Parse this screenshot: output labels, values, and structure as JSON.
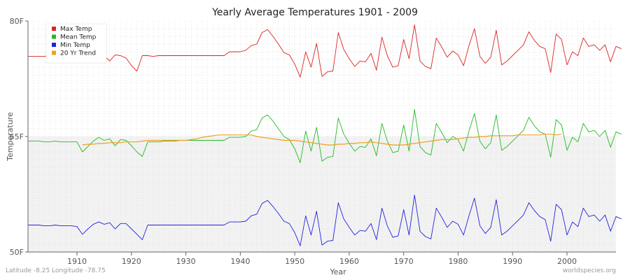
{
  "chart_data": {
    "type": "line",
    "title": "Yearly Average Temperatures 1901 - 2009",
    "xlabel": "Year",
    "ylabel": "Temperature",
    "xlim": [
      1901,
      2009
    ],
    "ylim": [
      50,
      80
    ],
    "yticks": [
      {
        "value": 50,
        "label": "50F"
      },
      {
        "value": 65,
        "label": "65F"
      },
      {
        "value": 80,
        "label": "80F"
      }
    ],
    "xticks": [
      1910,
      1920,
      1930,
      1940,
      1950,
      1960,
      1970,
      1980,
      1990,
      2000
    ],
    "grid": true,
    "legend_position": "top-left",
    "series": [
      {
        "name": "Max Temp",
        "color": "#dd2222",
        "x_start": 1901,
        "values": [
          75.4,
          75.4,
          75.4,
          75.4,
          75.5,
          75.4,
          75.4,
          75.4,
          75.3,
          74.9,
          75.5,
          75.8,
          75.6,
          75.4,
          75.5,
          74.8,
          75.6,
          75.5,
          75.2,
          74.2,
          73.5,
          75.5,
          75.5,
          75.4,
          75.5,
          75.5,
          75.5,
          75.5,
          75.5,
          75.5,
          75.5,
          75.5,
          75.5,
          75.5,
          75.5,
          75.5,
          75.5,
          76.0,
          76.0,
          76.0,
          76.2,
          76.8,
          77.0,
          78.5,
          78.9,
          78.0,
          77.0,
          75.9,
          75.6,
          74.4,
          72.7,
          76.0,
          74.0,
          77.1,
          72.8,
          73.4,
          73.5,
          78.5,
          76.3,
          75.1,
          74.1,
          74.8,
          74.7,
          75.8,
          73.6,
          77.9,
          75.5,
          74.0,
          74.2,
          77.6,
          75.1,
          79.5,
          74.8,
          74.1,
          73.8,
          77.8,
          76.6,
          75.3,
          76.1,
          75.6,
          74.2,
          76.8,
          79.0,
          75.4,
          74.5,
          75.3,
          78.8,
          74.3,
          74.8,
          75.5,
          76.2,
          76.9,
          78.6,
          77.5,
          76.7,
          76.4,
          73.3,
          78.3,
          77.6,
          74.3,
          76.0,
          75.5,
          77.8,
          76.7,
          76.9,
          76.2,
          76.9,
          74.7,
          76.7,
          76.4
        ]
      },
      {
        "name": "Mean Temp",
        "color": "#22bb22",
        "x_start": 1901,
        "values": [
          64.4,
          64.4,
          64.4,
          64.3,
          64.3,
          64.4,
          64.3,
          64.3,
          64.3,
          64.3,
          63.0,
          63.7,
          64.4,
          64.9,
          64.5,
          64.7,
          63.8,
          64.6,
          64.5,
          63.8,
          63.0,
          62.4,
          64.3,
          64.3,
          64.3,
          64.4,
          64.4,
          64.4,
          64.5,
          64.5,
          64.5,
          64.5,
          64.5,
          64.5,
          64.5,
          64.5,
          64.5,
          64.9,
          64.9,
          64.9,
          65.0,
          65.7,
          65.9,
          67.4,
          67.8,
          67.0,
          66.0,
          65.0,
          64.6,
          63.4,
          61.6,
          65.7,
          63.1,
          66.2,
          61.8,
          62.3,
          62.4,
          67.4,
          65.3,
          64.1,
          63.1,
          63.7,
          63.6,
          64.7,
          62.5,
          66.7,
          64.4,
          62.9,
          63.1,
          66.5,
          63.1,
          68.5,
          63.7,
          62.9,
          62.6,
          66.7,
          65.5,
          64.2,
          65.0,
          64.6,
          63.1,
          65.7,
          68.0,
          64.4,
          63.4,
          64.2,
          67.8,
          63.2,
          63.7,
          64.4,
          65.1,
          65.8,
          67.5,
          66.4,
          65.6,
          65.3,
          62.3,
          67.2,
          66.5,
          63.2,
          64.9,
          64.3,
          66.7,
          65.6,
          65.8,
          65.0,
          65.8,
          63.6,
          65.6,
          65.3
        ]
      },
      {
        "name": "Min Temp",
        "color": "#2222dd",
        "x_start": 1901,
        "values": [
          53.5,
          53.5,
          53.5,
          53.4,
          53.4,
          53.5,
          53.4,
          53.4,
          53.4,
          53.3,
          52.3,
          53.0,
          53.6,
          53.9,
          53.6,
          53.8,
          53.0,
          53.7,
          53.7,
          53.0,
          52.3,
          51.6,
          53.5,
          53.5,
          53.5,
          53.5,
          53.5,
          53.5,
          53.5,
          53.5,
          53.5,
          53.5,
          53.5,
          53.5,
          53.5,
          53.5,
          53.5,
          53.9,
          53.9,
          53.9,
          54.0,
          54.7,
          54.9,
          56.3,
          56.7,
          55.9,
          55.0,
          54.0,
          53.7,
          52.5,
          50.8,
          54.7,
          52.2,
          55.3,
          50.9,
          51.4,
          51.5,
          56.4,
          54.3,
          53.2,
          52.2,
          52.8,
          52.7,
          53.7,
          51.6,
          55.7,
          53.4,
          51.9,
          52.1,
          55.5,
          52.2,
          57.4,
          52.7,
          52.0,
          51.7,
          55.7,
          54.5,
          53.2,
          54.0,
          53.6,
          52.2,
          54.7,
          57.0,
          53.4,
          52.4,
          53.2,
          56.8,
          52.2,
          52.7,
          53.4,
          54.1,
          54.8,
          56.4,
          55.4,
          54.6,
          54.2,
          51.4,
          56.2,
          55.5,
          52.2,
          53.9,
          53.3,
          55.7,
          54.6,
          54.8,
          54.0,
          54.8,
          52.7,
          54.6,
          54.3
        ]
      },
      {
        "name": "20 Yr Trend",
        "color": "#f0a020",
        "x_start": 1911,
        "values": [
          63.9,
          64.0,
          64.0,
          64.1,
          64.1,
          64.2,
          64.2,
          64.2,
          64.3,
          64.3,
          64.3,
          64.4,
          64.5,
          64.5,
          64.5,
          64.5,
          64.5,
          64.5,
          64.5,
          64.5,
          64.6,
          64.7,
          64.9,
          65.0,
          65.1,
          65.2,
          65.2,
          65.2,
          65.2,
          65.2,
          65.2,
          65.2,
          65.0,
          64.9,
          64.8,
          64.7,
          64.6,
          64.5,
          64.5,
          64.5,
          64.4,
          64.3,
          64.2,
          64.1,
          64.0,
          63.9,
          63.9,
          64.0,
          64.0,
          64.1,
          64.1,
          64.2,
          64.2,
          64.3,
          64.2,
          64.1,
          64.0,
          63.9,
          63.9,
          63.9,
          64.0,
          64.1,
          64.2,
          64.3,
          64.4,
          64.5,
          64.6,
          64.6,
          64.6,
          64.7,
          64.8,
          64.9,
          64.9,
          65.0,
          65.0,
          65.1,
          65.1,
          65.1,
          65.1,
          65.1,
          65.2,
          65.2,
          65.2,
          65.2,
          65.2,
          65.3,
          65.3,
          65.2,
          65.3
        ]
      }
    ]
  },
  "footer": {
    "left": "Latitude -8.25 Longitude -78.75",
    "right": "worldspecies.org"
  }
}
